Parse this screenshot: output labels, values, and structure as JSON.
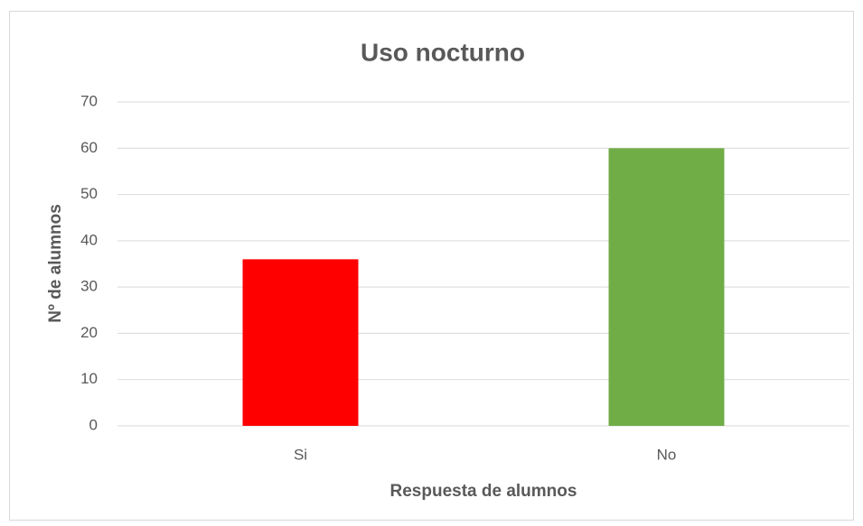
{
  "chart_data": {
    "type": "bar",
    "title": "Uso nocturno",
    "x_label": "Respuesta de alumnos",
    "y_label": "Nº de alumnos",
    "categories": [
      "Si",
      "No"
    ],
    "values": [
      36,
      60
    ],
    "colors": [
      "#ff0000",
      "#70ad47"
    ],
    "ylim": [
      0,
      70
    ],
    "yticks": [
      0,
      10,
      20,
      30,
      40,
      50,
      60,
      70
    ],
    "grid": true
  }
}
